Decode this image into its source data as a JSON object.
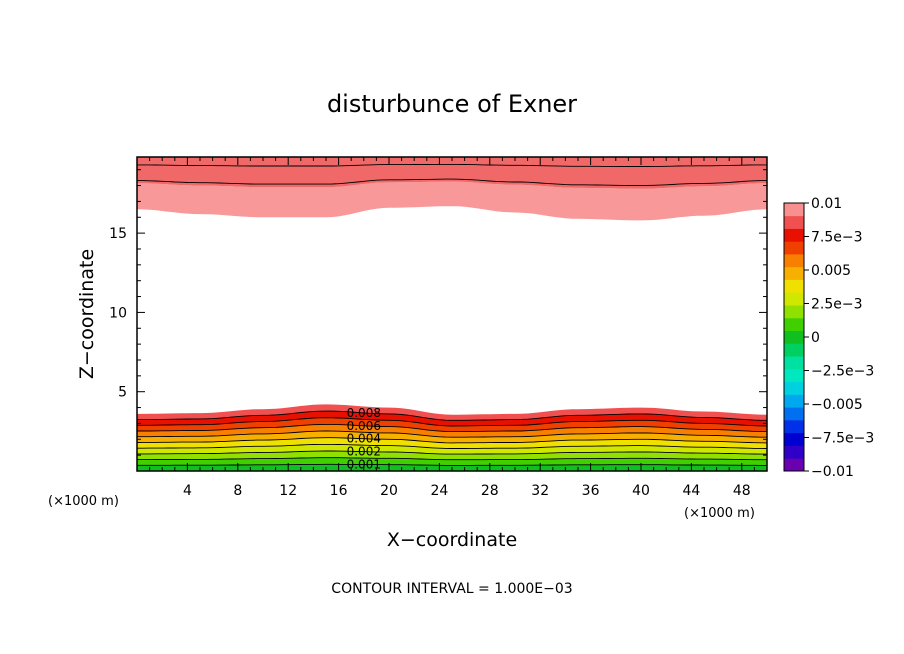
{
  "chart_data": {
    "type": "contour",
    "title": "disturbunce of Exner",
    "xlabel": "X−coordinate",
    "ylabel": "Z−coordinate",
    "x_unit_label": "(×1000 m)",
    "y_unit_label": "(×1000 m)",
    "xlim": [
      0,
      50
    ],
    "ylim": [
      0,
      19.8
    ],
    "x_ticks": [
      4,
      8,
      12,
      16,
      20,
      24,
      28,
      32,
      36,
      40,
      44,
      48
    ],
    "y_ticks": [
      5,
      10,
      15
    ],
    "contour_interval_text": "CONTOUR INTERVAL = 1.000E−03",
    "contour_labels": [
      "0.008",
      "0.006",
      "0.004",
      "0.002",
      "0.001"
    ],
    "colorbar": {
      "tick_labels": [
        "0.01",
        "7.5e−3",
        "0.005",
        "2.5e−3",
        "0",
        "−2.5e−3",
        "−0.005",
        "−7.5e−3",
        "−0.01"
      ],
      "levels": [
        -0.01,
        -0.009,
        -0.008,
        -0.007,
        -0.006,
        -0.005,
        -0.004,
        -0.003,
        -0.002,
        -0.001,
        0,
        0.001,
        0.002,
        0.003,
        0.004,
        0.005,
        0.006,
        0.007,
        0.008,
        0.009,
        0.01
      ],
      "colors": [
        "#6a00b0",
        "#3000c8",
        "#0000d0",
        "#0030e8",
        "#0070f0",
        "#00a8f0",
        "#00d0e0",
        "#00e8c0",
        "#00e0a0",
        "#00d060",
        "#10c020",
        "#40d000",
        "#90e000",
        "#d0e800",
        "#f0e000",
        "#f8b000",
        "#f88000",
        "#f04000",
        "#e81000",
        "#f05050",
        "#f89090"
      ]
    },
    "fields": {
      "bottom_layer": {
        "top_z": [
          3.6,
          3.65,
          3.9,
          4.2,
          4.0,
          3.55,
          3.6,
          3.9,
          4.0,
          3.75,
          3.55
        ],
        "levels": [
          0.009,
          0.008,
          0.007,
          0.006,
          0.005,
          0.004,
          0.003,
          0.002,
          0.001,
          0
        ],
        "x_knots": [
          0,
          5,
          10,
          15,
          20,
          25,
          30,
          35,
          40,
          45,
          50
        ]
      },
      "top_layer": {
        "x_knots": [
          0,
          5,
          10,
          15,
          20,
          25,
          30,
          35,
          40,
          45,
          50
        ],
        "bottom_z": [
          16.5,
          16.2,
          16.0,
          16.0,
          16.6,
          16.7,
          16.3,
          15.9,
          15.8,
          16.1,
          16.5
        ],
        "levels": [
          0.009,
          0.01
        ]
      }
    }
  }
}
